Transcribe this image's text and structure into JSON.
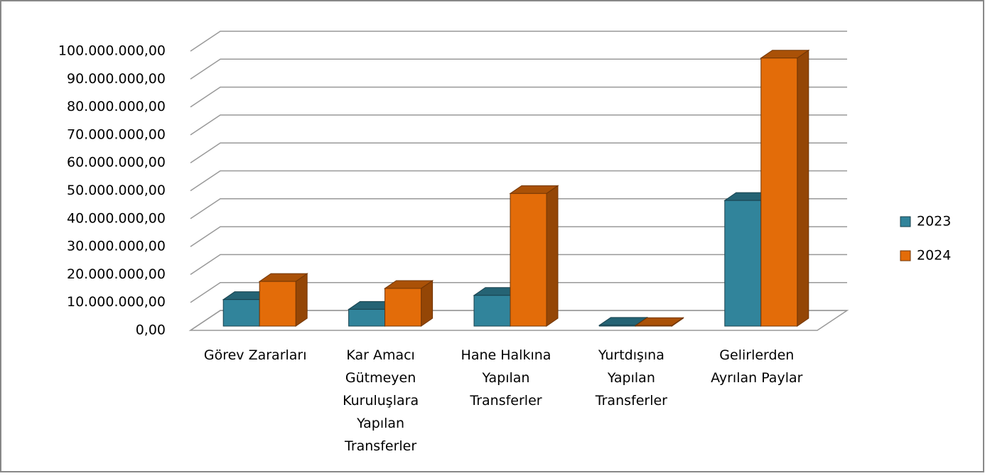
{
  "chart_data": {
    "type": "bar3d",
    "categories": [
      "Görev Zararları",
      "Kar Amacı Gütmeyen Kuruluşlara Yapılan Transferler",
      "Hane Halkına Yapılan Transferler",
      "Yurtdışına Yapılan Transferler",
      "Gelirlerden Ayrılan Paylar"
    ],
    "series": [
      {
        "name": "2023",
        "color": "#31849b",
        "values": [
          9500000,
          6000000,
          11000000,
          300000,
          45000000
        ]
      },
      {
        "name": "2024",
        "color": "#e36c09",
        "values": [
          16000000,
          13500000,
          47500000,
          200000,
          96000000
        ]
      }
    ],
    "ylim": [
      0,
      100000000
    ],
    "yticks": [
      {
        "value": 0,
        "label": "0,00"
      },
      {
        "value": 10000000,
        "label": "10.000.000,00"
      },
      {
        "value": 20000000,
        "label": "20.000.000,00"
      },
      {
        "value": 30000000,
        "label": "30.000.000,00"
      },
      {
        "value": 40000000,
        "label": "40.000.000,00"
      },
      {
        "value": 50000000,
        "label": "50.000.000,00"
      },
      {
        "value": 60000000,
        "label": "60.000.000,00"
      },
      {
        "value": 70000000,
        "label": "70.000.000,00"
      },
      {
        "value": 80000000,
        "label": "80.000.000,00"
      },
      {
        "value": 90000000,
        "label": "90.000.000,00"
      },
      {
        "value": 100000000,
        "label": "100.000.000,00"
      }
    ],
    "grid": true,
    "legend": "right"
  }
}
